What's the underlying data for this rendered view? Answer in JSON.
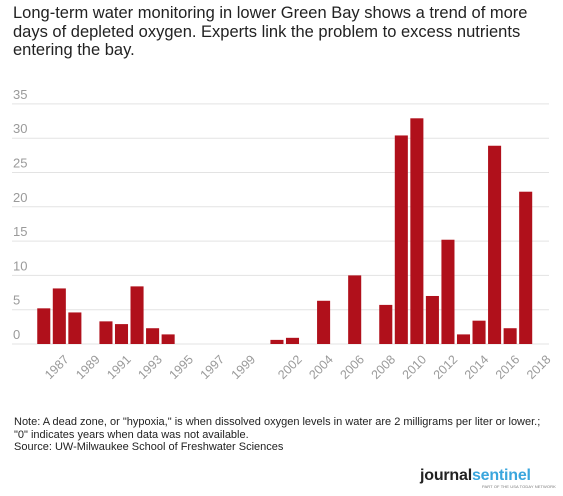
{
  "headline": "Long-term water monitoring in lower Green Bay shows a trend of more days of depleted oxygen. Experts link the problem to excess nutrients entering the bay.",
  "note": "Note: A dead zone, or \"hypoxia,\"  is when dissolved oxygen levels in water are 2 milligrams per liter or lower.; \"0\" indicates years when data was not available.",
  "source": "Source: UW-Milwaukee School of Freshwater Sciences",
  "brand": {
    "word1": "journal",
    "word2": "sentinel",
    "tagline": "PART OF THE USA TODAY NETWORK"
  },
  "colors": {
    "bar": "#b0101b",
    "grid": "#e3e3e3",
    "tick": "#9a9a9a"
  },
  "chart_data": {
    "type": "bar",
    "title": "",
    "xlabel": "",
    "ylabel": "",
    "ylim": [
      0,
      35
    ],
    "yticks": [
      0,
      5,
      10,
      15,
      20,
      25,
      30,
      35
    ],
    "grid": true,
    "legend": "none",
    "categories": [
      "1986",
      "1987",
      "1988",
      "1989",
      "1990",
      "1991",
      "1992",
      "1993",
      "1994",
      "1995",
      "1996",
      "1997",
      "1998",
      "1999",
      "2000",
      "2001",
      "2002",
      "2003",
      "2004",
      "2005",
      "2006",
      "2007",
      "2008",
      "2009",
      "2010",
      "2011",
      "2012",
      "2013",
      "2014",
      "2015",
      "2016",
      "2017",
      "2018"
    ],
    "values": [
      5.2,
      8.1,
      4.6,
      0,
      3.3,
      2.9,
      8.4,
      2.3,
      1.4,
      0,
      0,
      0,
      0,
      0,
      0,
      0.6,
      0.9,
      0,
      6.3,
      0,
      10.0,
      0,
      5.7,
      30.4,
      32.9,
      7.0,
      15.2,
      1.4,
      3.4,
      28.9,
      2.3,
      22.2,
      0
    ],
    "xtick_labels": [
      "1987",
      "1989",
      "1991",
      "1993",
      "1995",
      "1997",
      "1999",
      "2002",
      "2004",
      "2006",
      "2008",
      "2010",
      "2012",
      "2014",
      "2016",
      "2018"
    ]
  }
}
